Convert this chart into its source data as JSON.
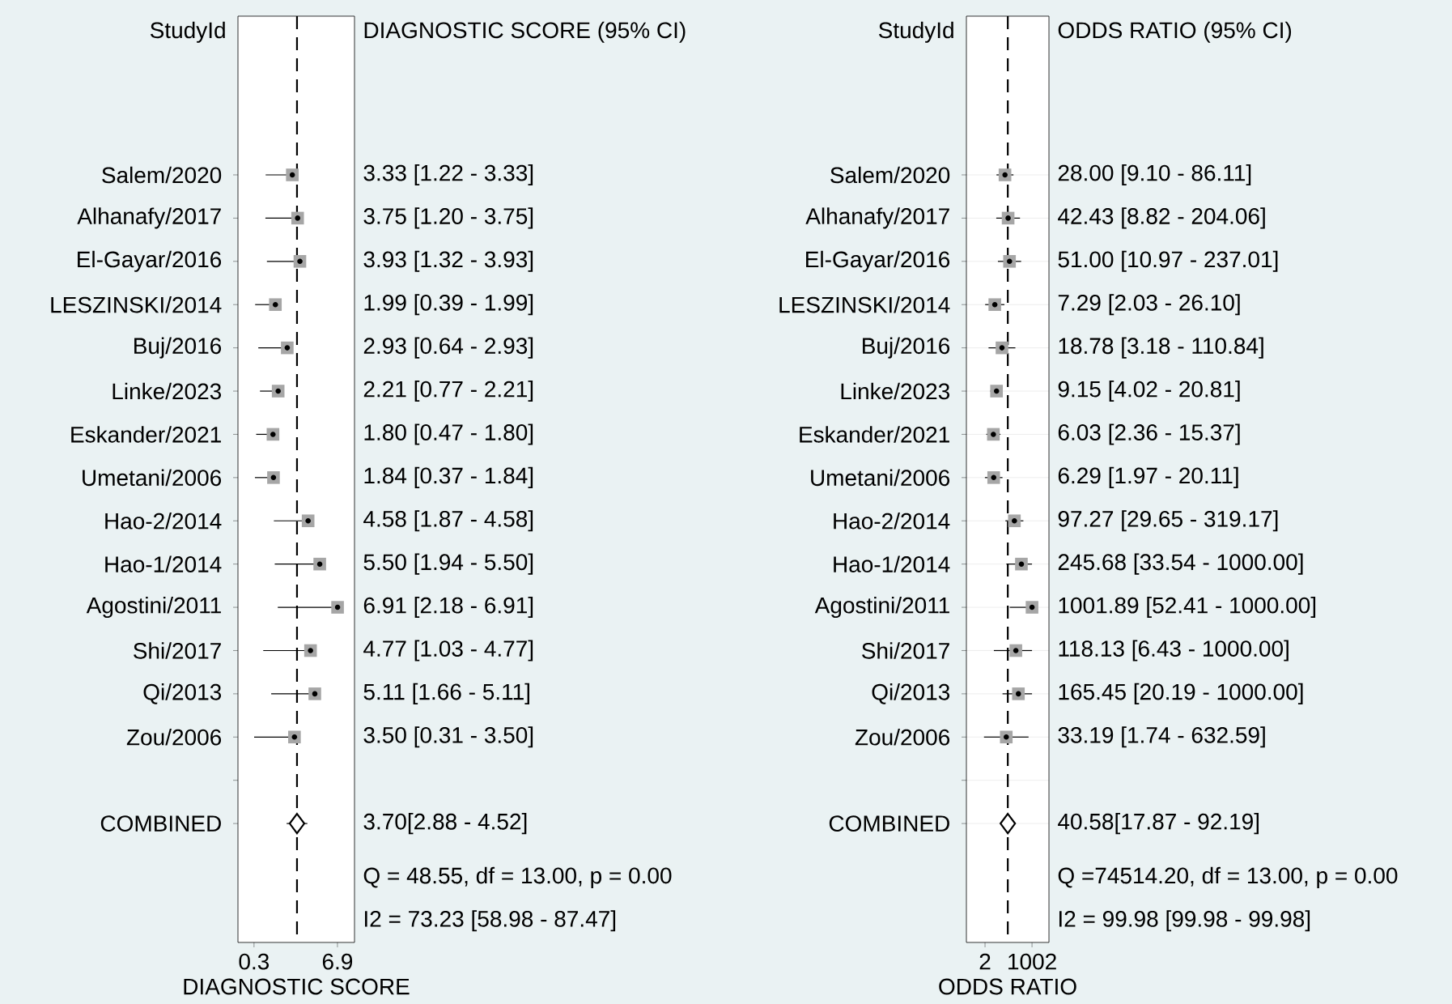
{
  "chart_data": [
    {
      "type": "scatter",
      "orientation": "horizontal",
      "xlabel": "DIAGNOSTIC SCORE",
      "ylabel": "StudyId",
      "categories": [
        "Salem/2020",
        "Alhanafy/2017",
        "El-Gayar/2016",
        "LESZINSKI/2014",
        "Buj/2016",
        "Linke/2023",
        "Eskander/2021",
        "Umetani/2006",
        "Hao-2/2014",
        "Hao-1/2014",
        "Agostini/2011",
        "Shi/2017",
        "Qi/2013",
        "Zou/2006",
        null,
        "COMBINED"
      ],
      "series": [
        {
          "color": "#a6a6a6",
          "marker": "square",
          "values": [
            3.33,
            3.75,
            3.93,
            1.99,
            2.93,
            2.21,
            1.8,
            1.84,
            4.58,
            5.5,
            6.91,
            4.77,
            5.11,
            3.5,
            null,
            null
          ],
          "errors": [
            [
              1.22,
              3.33
            ],
            [
              1.2,
              3.75
            ],
            [
              1.32,
              3.93
            ],
            [
              0.39,
              1.99
            ],
            [
              0.64,
              2.93
            ],
            [
              0.77,
              2.21
            ],
            [
              0.47,
              1.8
            ],
            [
              0.37,
              1.84
            ],
            [
              1.87,
              4.58
            ],
            [
              1.94,
              5.5
            ],
            [
              2.18,
              6.91
            ],
            [
              1.03,
              4.77
            ],
            [
              1.66,
              5.11
            ],
            [
              0.31,
              3.5
            ],
            null,
            null
          ],
          "value_labels": [
            "3.33 [1.22 - 3.33]",
            "3.75 [1.20 - 3.75]",
            "3.93 [1.32 - 3.93]",
            "1.99 [0.39 - 1.99]",
            "2.93 [0.64 - 2.93]",
            "2.21 [0.77 - 2.21]",
            "1.80 [0.47 - 1.80]",
            "1.84 [0.37 - 1.84]",
            "4.58 [1.87 - 4.58]",
            "5.50 [1.94 - 5.50]",
            "6.91 [2.18 - 6.91]",
            "4.77 [1.03 - 4.77]",
            "5.11 [1.66 - 5.11]",
            "3.50 [0.31 - 3.50]",
            null,
            null
          ]
        },
        {
          "color": "#000000",
          "marker": "diamond",
          "values": [
            null,
            null,
            null,
            null,
            null,
            null,
            null,
            null,
            null,
            null,
            null,
            null,
            null,
            null,
            null,
            3.7
          ],
          "errors": [
            null,
            null,
            null,
            null,
            null,
            null,
            null,
            null,
            null,
            null,
            null,
            null,
            null,
            null,
            null,
            [
              2.88,
              4.52
            ]
          ],
          "value_labels": [
            null,
            null,
            null,
            null,
            null,
            null,
            null,
            null,
            null,
            null,
            null,
            null,
            null,
            null,
            null,
            "3.70[2.88 - 4.52]"
          ]
        }
      ],
      "xlim": [
        -0.97,
        8.25
      ],
      "xticks": [
        0.3,
        6.9
      ],
      "ref_lines": [
        {
          "axis": "x",
          "value": 3.7,
          "line_style": "dashed"
        }
      ],
      "annotations": [
        "DIAGNOSTIC SCORE (95% CI)",
        "Q = 48.55, df = 13.00, p = 0.00",
        "I2 = 73.23 [58.98 - 87.47]"
      ]
    },
    {
      "type": "scatter",
      "orientation": "horizontal",
      "xlabel": "ODDS RATIO",
      "ylabel": "StudyId",
      "log": "x",
      "grid": "y",
      "categories": [
        "Salem/2020",
        "Alhanafy/2017",
        "El-Gayar/2016",
        "LESZINSKI/2014",
        "Buj/2016",
        "Linke/2023",
        "Eskander/2021",
        "Umetani/2006",
        "Hao-2/2014",
        "Hao-1/2014",
        "Agostini/2011",
        "Shi/2017",
        "Qi/2013",
        "Zou/2006",
        null,
        "COMBINED"
      ],
      "series": [
        {
          "color": "#a6a6a6",
          "marker": "square",
          "values": [
            28.0,
            42.43,
            51.0,
            7.29,
            18.78,
            9.15,
            6.03,
            6.29,
            97.27,
            245.68,
            1001.89,
            118.13,
            165.45,
            33.19,
            null,
            null
          ],
          "errors": [
            [
              9.1,
              86.11
            ],
            [
              8.82,
              204.06
            ],
            [
              10.97,
              237.01
            ],
            [
              2.03,
              26.1
            ],
            [
              3.18,
              110.84
            ],
            [
              4.02,
              20.81
            ],
            [
              2.36,
              15.37
            ],
            [
              1.97,
              20.11
            ],
            [
              29.65,
              319.17
            ],
            [
              33.54,
              1000.0
            ],
            [
              52.41,
              1000.0
            ],
            [
              6.43,
              1000.0
            ],
            [
              20.19,
              1000.0
            ],
            [
              1.74,
              632.59
            ],
            null,
            null
          ],
          "value_labels": [
            "28.00 [9.10 - 86.11]",
            "42.43 [8.82 - 204.06]",
            "51.00 [10.97 - 237.01]",
            "7.29 [2.03 - 26.10]",
            "18.78 [3.18 - 110.84]",
            "9.15 [4.02 - 20.81]",
            "6.03 [2.36 - 15.37]",
            "6.29 [1.97 - 20.11]",
            "97.27 [29.65 - 319.17]",
            "245.68 [33.54 - 1000.00]",
            "1001.89 [52.41 - 1000.00]",
            "118.13 [6.43 - 1000.00]",
            "165.45 [20.19 - 1000.00]",
            "33.19 [1.74 - 632.59]",
            null,
            null
          ]
        },
        {
          "color": "#000000",
          "marker": "diamond",
          "values": [
            null,
            null,
            null,
            null,
            null,
            null,
            null,
            null,
            null,
            null,
            null,
            null,
            null,
            null,
            null,
            40.58
          ],
          "errors": [
            null,
            null,
            null,
            null,
            null,
            null,
            null,
            null,
            null,
            null,
            null,
            null,
            null,
            null,
            null,
            [
              17.87,
              92.19
            ]
          ],
          "value_labels": [
            null,
            null,
            null,
            null,
            null,
            null,
            null,
            null,
            null,
            null,
            null,
            null,
            null,
            null,
            null,
            "40.58[17.87 - 92.19]"
          ]
        }
      ],
      "xlim": [
        0.17,
        9400
      ],
      "xticks": [
        2,
        1002
      ],
      "ref_lines": [
        {
          "axis": "x",
          "value": 40.58,
          "line_style": "dashed"
        }
      ],
      "annotations": [
        "ODDS RATIO (95% CI)",
        "Q =74514.20, df = 13.00, p = 0.00",
        "I2 = 99.98 [99.98 - 99.98]"
      ]
    }
  ]
}
